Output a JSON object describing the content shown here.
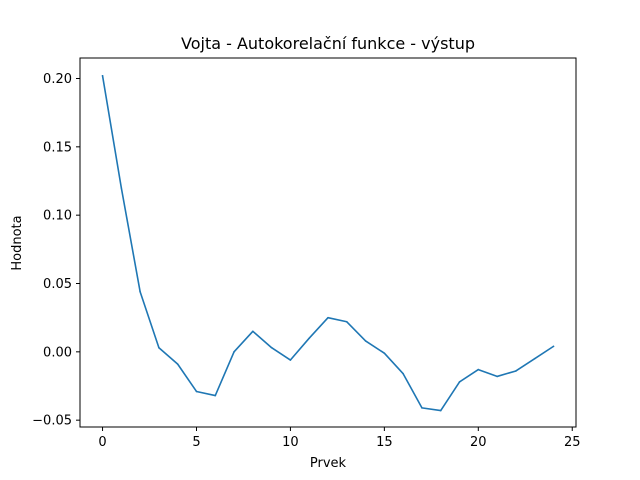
{
  "chart_data": {
    "type": "line",
    "title": "Vojta - Autokorelační funkce - výstup",
    "xlabel": "Prvek",
    "ylabel": "Hodnota",
    "xlim": [
      -1.2,
      25.2
    ],
    "ylim": [
      -0.055,
      0.215
    ],
    "xticks": [
      0,
      5,
      10,
      15,
      20,
      25
    ],
    "xtick_labels": [
      "0",
      "5",
      "10",
      "15",
      "20",
      "25"
    ],
    "yticks": [
      -0.05,
      0.0,
      0.05,
      0.1,
      0.15,
      0.2
    ],
    "ytick_labels": [
      "−0.05",
      "0.00",
      "0.05",
      "0.10",
      "0.15",
      "0.20"
    ],
    "grid": false,
    "legend": "none",
    "series": [
      {
        "color": "#1f77b4",
        "x": [
          0,
          1,
          2,
          3,
          4,
          5,
          6,
          7,
          8,
          9,
          10,
          11,
          12,
          13,
          14,
          15,
          16,
          17,
          18,
          19,
          20,
          21,
          22,
          23,
          24
        ],
        "y": [
          0.202,
          0.12,
          0.044,
          0.003,
          -0.009,
          -0.029,
          -0.032,
          0.0,
          0.015,
          0.003,
          -0.006,
          0.01,
          0.025,
          0.022,
          0.008,
          -0.001,
          -0.016,
          -0.041,
          -0.043,
          -0.022,
          -0.013,
          -0.018,
          -0.014,
          -0.005,
          0.004
        ]
      }
    ]
  }
}
